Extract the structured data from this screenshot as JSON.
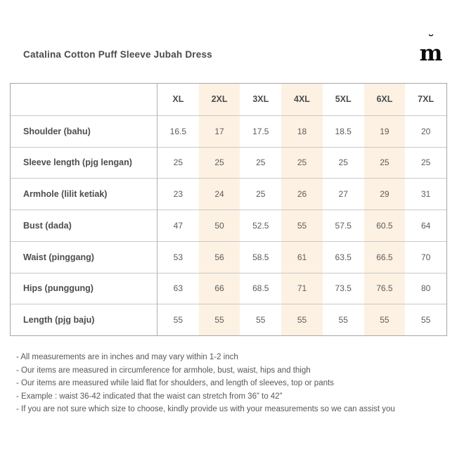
{
  "page": {
    "title": "Catalina Cotton Puff Sleeve Jubah Dress",
    "logo": {
      "letter": "m",
      "accent": "˘"
    }
  },
  "chart_data": {
    "type": "table",
    "title": "Catalina Cotton Puff Sleeve Jubah Dress",
    "unit": "inches",
    "highlight_color": "#fdf1e3",
    "highlighted_columns": [
      "2XL",
      "4XL",
      "6XL"
    ],
    "columns": [
      "XL",
      "2XL",
      "3XL",
      "4XL",
      "5XL",
      "6XL",
      "7XL"
    ],
    "rows": [
      {
        "label": "Shoulder (bahu)",
        "values": [
          "16.5",
          "17",
          "17.5",
          "18",
          "18.5",
          "19",
          "20"
        ]
      },
      {
        "label": "Sleeve length (pjg lengan)",
        "values": [
          "25",
          "25",
          "25",
          "25",
          "25",
          "25",
          "25"
        ]
      },
      {
        "label": "Armhole (lilit ketiak)",
        "values": [
          "23",
          "24",
          "25",
          "26",
          "27",
          "29",
          "31"
        ]
      },
      {
        "label": "Bust (dada)",
        "values": [
          "47",
          "50",
          "52.5",
          "55",
          "57.5",
          "60.5",
          "64"
        ]
      },
      {
        "label": "Waist (pinggang)",
        "values": [
          "53",
          "56",
          "58.5",
          "61",
          "63.5",
          "66.5",
          "70"
        ]
      },
      {
        "label": "Hips (punggung)",
        "values": [
          "63",
          "66",
          "68.5",
          "71",
          "73.5",
          "76.5",
          "80"
        ]
      },
      {
        "label": "Length (pjg baju)",
        "values": [
          "55",
          "55",
          "55",
          "55",
          "55",
          "55",
          "55"
        ]
      }
    ]
  },
  "notes": [
    "- All measurements are in inches and may vary within 1-2 inch",
    "- Our items are measured in circumference for armhole, bust, waist, hips and thigh",
    "- Our items are measured while laid flat for shoulders, and length of sleeves, top or pants",
    "- Example : waist 36-42 indicated that the waist can stretch from 36” to 42”",
    "- If you are not sure which size to choose, kindly provide us with your measurements so we can assist you"
  ]
}
